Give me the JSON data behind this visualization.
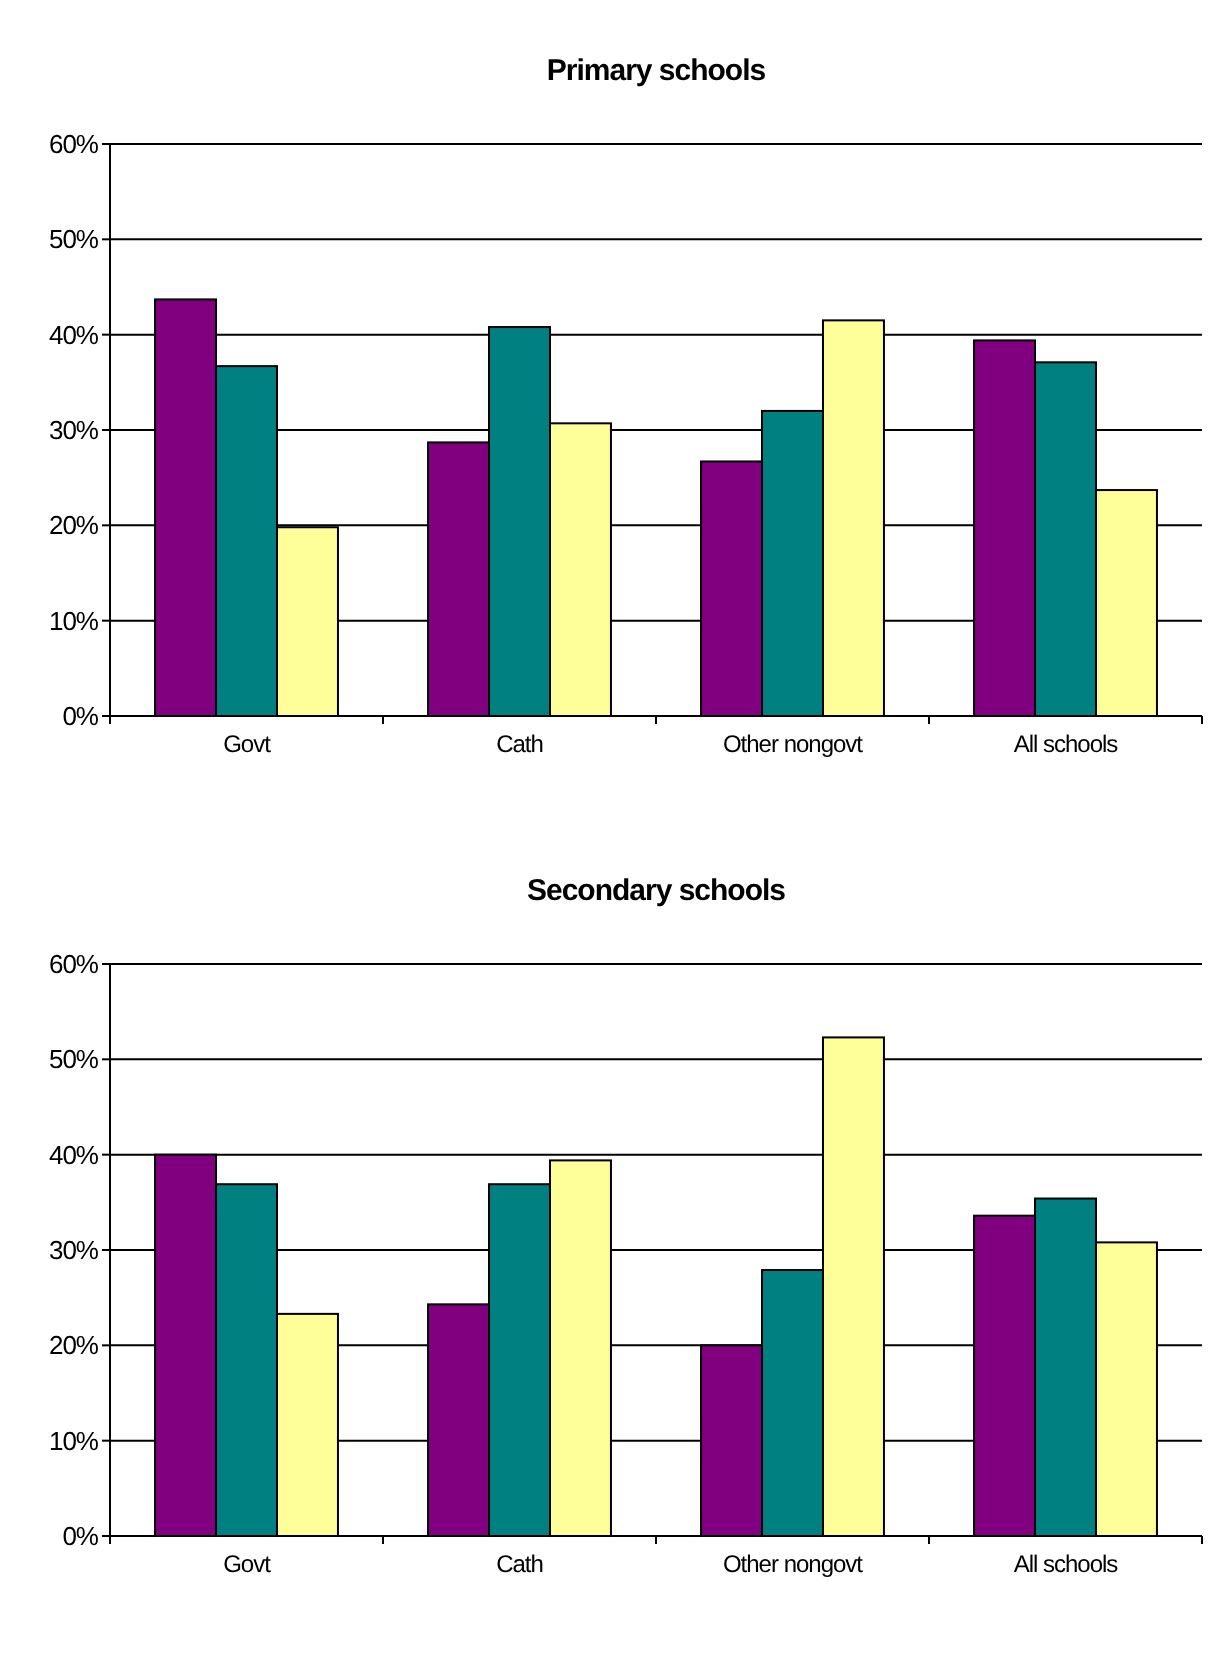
{
  "chart_data": [
    {
      "type": "bar",
      "title": "Primary schools",
      "categories": [
        "Govt",
        "Cath",
        "Other nongovt",
        "All schools"
      ],
      "series": [
        {
          "color": "#800080",
          "values": [
            43.7,
            28.7,
            26.7,
            39.4
          ]
        },
        {
          "color": "#008080",
          "values": [
            36.7,
            40.8,
            32.0,
            37.1
          ]
        },
        {
          "color": "#ffff99",
          "values": [
            19.8,
            30.7,
            41.5,
            23.7
          ]
        }
      ],
      "ylim": [
        0,
        60
      ],
      "yticks": [
        {
          "value": 0,
          "label": "0%"
        },
        {
          "value": 10,
          "label": "10%"
        },
        {
          "value": 20,
          "label": "20%"
        },
        {
          "value": 30,
          "label": "30%"
        },
        {
          "value": 40,
          "label": "40%"
        },
        {
          "value": 50,
          "label": "50%"
        },
        {
          "value": 60,
          "label": "60%"
        }
      ],
      "grid": "y"
    },
    {
      "type": "bar",
      "title": "Secondary schools",
      "categories": [
        "Govt",
        "Cath",
        "Other nongovt",
        "All schools"
      ],
      "series": [
        {
          "color": "#800080",
          "values": [
            40.0,
            24.3,
            20.0,
            33.6
          ]
        },
        {
          "color": "#008080",
          "values": [
            36.9,
            36.9,
            27.9,
            35.4
          ]
        },
        {
          "color": "#ffff99",
          "values": [
            23.3,
            39.4,
            52.3,
            30.8
          ]
        }
      ],
      "ylim": [
        0,
        60
      ],
      "yticks": [
        {
          "value": 0,
          "label": "0%"
        },
        {
          "value": 10,
          "label": "10%"
        },
        {
          "value": 20,
          "label": "20%"
        },
        {
          "value": 30,
          "label": "30%"
        },
        {
          "value": 40,
          "label": "40%"
        },
        {
          "value": 50,
          "label": "50%"
        },
        {
          "value": 60,
          "label": "60%"
        }
      ],
      "grid": "y"
    }
  ]
}
